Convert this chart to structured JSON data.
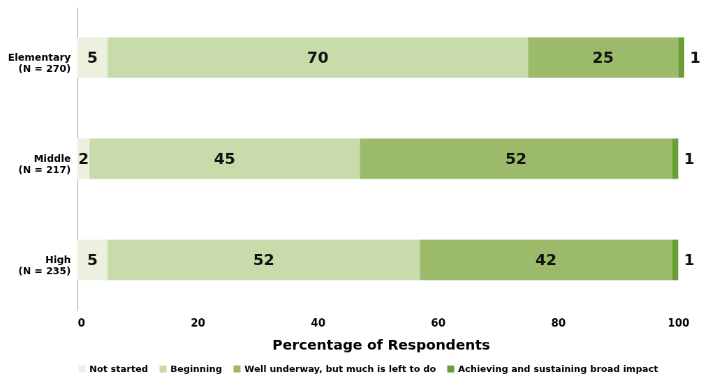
{
  "chart_data": {
    "type": "bar",
    "orientation": "horizontal",
    "stacked": true,
    "xlabel": "Percentage of Respondents",
    "categories": [
      "Elementary\n(N = 270)",
      "Middle\n(N = 217)",
      "High\n(N = 235)"
    ],
    "series": [
      {
        "name": "Not started",
        "color": "#ebf1de",
        "values": [
          5,
          2,
          5
        ]
      },
      {
        "name": "Beginning",
        "color": "#c8dbab",
        "values": [
          70,
          45,
          52
        ]
      },
      {
        "name": "Well underway, but much is left to do",
        "color": "#9bbb6a",
        "values": [
          25,
          52,
          42
        ]
      },
      {
        "name": "Achieving and sustaining broad impact",
        "color": "#6b9e38",
        "values": [
          1,
          1,
          1
        ]
      }
    ],
    "xlim": [
      0,
      101
    ],
    "xticks": [
      0,
      20,
      40,
      60,
      80,
      100
    ],
    "grid": false,
    "legend": "bottom",
    "data_labels": true
  }
}
